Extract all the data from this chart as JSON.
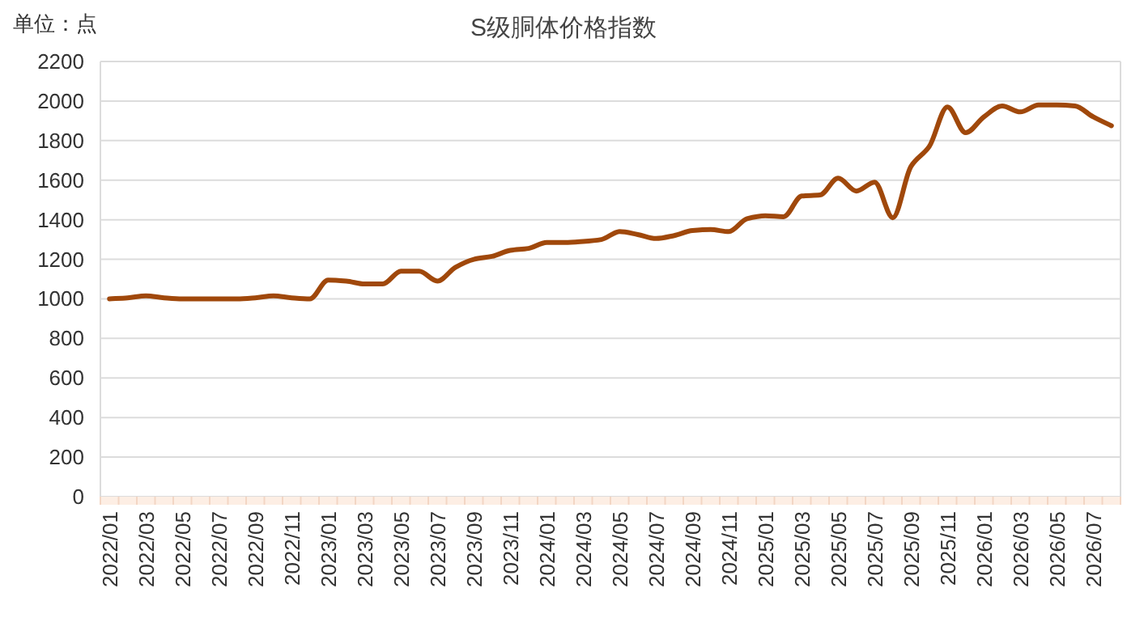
{
  "chart_data": {
    "type": "line",
    "title": "S级胴体价格指数",
    "ylabel": "单位：点",
    "categories": [
      "2022/01",
      null,
      "2022/03",
      null,
      "2022/05",
      null,
      "2022/07",
      null,
      "2022/09",
      null,
      "2022/11",
      null,
      "2023/01",
      null,
      "2023/03",
      null,
      "2023/05",
      null,
      "2023/07",
      null,
      "2023/09",
      null,
      "2023/11",
      null,
      "2024/01",
      null,
      "2024/03",
      null,
      "2024/05",
      null,
      "2024/07",
      null,
      "2024/09",
      null,
      "2024/11",
      null,
      "2025/01",
      null,
      "2025/03",
      null,
      "2025/05",
      null,
      "2025/07",
      null,
      "2025/09",
      null,
      "2025/11",
      null,
      "2026/01",
      null,
      "2026/03",
      null,
      "2026/05",
      null,
      "2026/07",
      null
    ],
    "series": [
      {
        "color": "#a0480b",
        "values": [
          1000,
          1005,
          1015,
          1005,
          1000,
          1000,
          1000,
          1000,
          1005,
          1015,
          1005,
          1000,
          1095,
          1090,
          1075,
          1075,
          1140,
          1140,
          1090,
          1160,
          1200,
          1215,
          1245,
          1255,
          1285,
          1285,
          1290,
          1300,
          1340,
          1325,
          1305,
          1320,
          1345,
          1350,
          1340,
          1405,
          1420,
          1415,
          1520,
          1525,
          1610,
          1545,
          1590,
          1410,
          1670,
          1770,
          1970,
          1840,
          1920,
          1975,
          1945,
          1980,
          1980,
          1975,
          1920,
          1875
        ]
      }
    ],
    "ylim": [
      0,
      2200
    ],
    "yticks": [
      0,
      200,
      400,
      600,
      800,
      1000,
      1200,
      1400,
      1600,
      1800,
      2000,
      2200
    ],
    "grid": "y",
    "marker": "none",
    "line_style": "solid"
  }
}
